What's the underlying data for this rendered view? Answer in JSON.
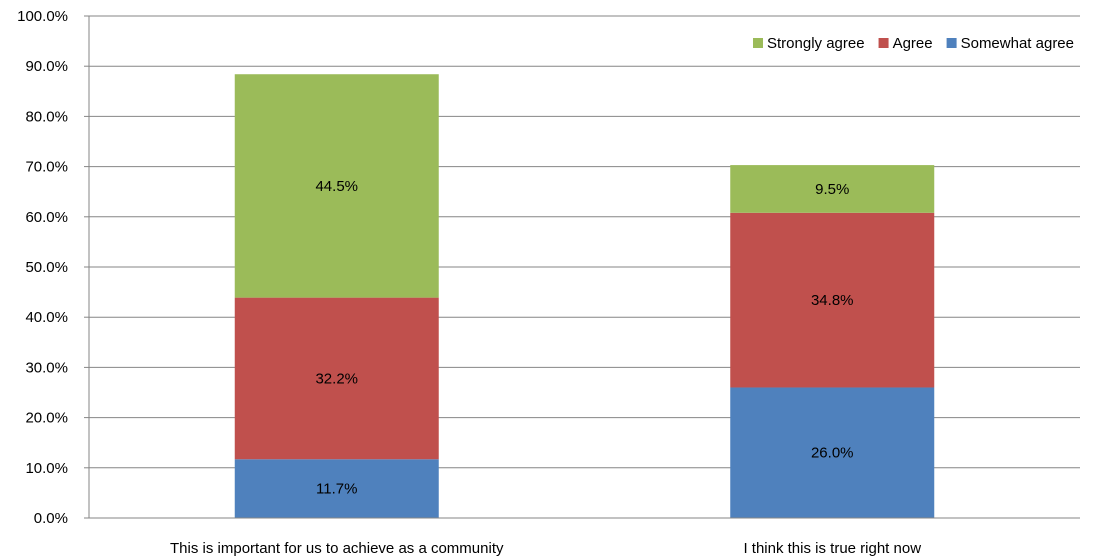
{
  "chart_data": {
    "type": "bar",
    "stacked": true,
    "categories": [
      "This is important  for us to achieve as a community",
      "I think this is true  right now"
    ],
    "series": [
      {
        "name": "Somewhat agree",
        "values": [
          11.7,
          26.0
        ],
        "labels": [
          "11.7%",
          "26.0%"
        ],
        "color": "#4f81bd"
      },
      {
        "name": "Agree",
        "values": [
          32.2,
          34.8
        ],
        "labels": [
          "32.2%",
          "34.8%"
        ],
        "color": "#c0504d"
      },
      {
        "name": "Strongly agree",
        "values": [
          44.5,
          9.5
        ],
        "labels": [
          "44.5%",
          "9.5%"
        ],
        "color": "#9bbb59"
      }
    ],
    "legend_order": [
      "Strongly agree",
      "Agree",
      "Somewhat agree"
    ],
    "ylim": [
      0,
      100
    ],
    "yticks": [
      0,
      10,
      20,
      30,
      40,
      50,
      60,
      70,
      80,
      90,
      100
    ],
    "ytick_labels": [
      "0.0%",
      "10.0%",
      "20.0%",
      "30.0%",
      "40.0%",
      "50.0%",
      "60.0%",
      "70.0%",
      "80.0%",
      "90.0%",
      "100.0%"
    ],
    "grid": true,
    "legend_position": "top-right",
    "xlabel": "",
    "ylabel": ""
  }
}
